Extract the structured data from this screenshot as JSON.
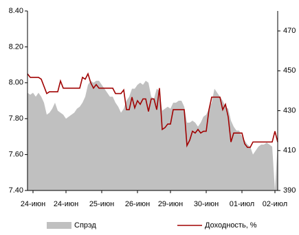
{
  "chart_data": {
    "type": "line",
    "x": [
      0,
      1,
      2,
      3,
      4,
      5,
      6,
      7,
      8,
      9,
      10,
      11,
      12,
      13,
      14,
      15,
      16,
      17,
      18,
      19,
      20,
      21,
      22,
      23,
      24,
      25,
      26,
      27,
      28,
      29,
      30,
      31,
      32,
      33,
      34,
      35,
      36,
      37,
      38,
      39,
      40,
      41,
      42,
      43,
      44,
      45,
      46,
      47,
      48,
      49,
      50,
      51,
      52,
      53,
      54,
      55,
      56,
      57,
      58,
      59,
      60,
      61,
      62,
      63,
      64,
      65,
      66,
      67,
      68,
      69,
      70,
      71,
      72,
      73,
      74,
      75,
      76,
      77,
      78,
      79,
      80,
      81,
      82,
      83,
      84,
      85,
      86,
      87,
      88,
      89,
      90,
      91
    ],
    "xlim": [
      0,
      91
    ],
    "xticks": [
      {
        "value": 2,
        "label": "24-июн"
      },
      {
        "value": 14,
        "label": "24-июн"
      },
      {
        "value": 27,
        "label": "25-июн"
      },
      {
        "value": 40,
        "label": "26-июн"
      },
      {
        "value": 52,
        "label": "29-июн"
      },
      {
        "value": 65,
        "label": "30-июн"
      },
      {
        "value": 78,
        "label": "01-июл"
      },
      {
        "value": 90,
        "label": "02-июл"
      }
    ],
    "ylim": [
      7.4,
      8.4
    ],
    "yticks": [
      {
        "value": 7.4,
        "label": "7.40"
      },
      {
        "value": 7.6,
        "label": "7.60"
      },
      {
        "value": 7.8,
        "label": "7.80"
      },
      {
        "value": 8.0,
        "label": "8.00"
      },
      {
        "value": 8.2,
        "label": "8.20"
      },
      {
        "value": 8.4,
        "label": "8.40"
      }
    ],
    "y2lim": [
      390,
      480
    ],
    "y2ticks": [
      390,
      410,
      430,
      450,
      470
    ],
    "series": [
      {
        "name": "Спрэд",
        "kind": "area",
        "axis": "y2",
        "color": "#c0c0c0",
        "values": [
          439,
          438,
          439,
          437,
          439,
          437,
          434,
          428,
          429,
          431,
          434,
          430,
          429,
          428,
          426,
          427,
          428,
          429,
          431,
          432,
          434,
          437,
          443,
          445,
          444,
          445,
          445,
          443,
          441,
          439,
          437,
          437,
          434,
          432,
          429,
          431,
          435,
          437,
          441,
          441,
          443,
          444,
          443,
          445,
          444,
          437,
          436,
          441,
          440,
          430,
          431,
          432,
          431,
          434,
          434,
          435,
          435,
          432,
          424,
          424,
          425,
          424,
          422,
          424,
          427,
          428,
          431,
          434,
          441,
          439,
          437,
          435,
          432,
          431,
          425,
          422,
          420,
          420,
          417,
          415,
          413,
          412,
          408,
          410,
          412,
          413,
          413,
          414,
          413,
          412,
          390,
          413
        ]
      },
      {
        "name": "Доходность, %",
        "kind": "line",
        "color": "#a00000",
        "values": [
          8.05,
          8.03,
          8.03,
          8.03,
          8.03,
          8.02,
          7.98,
          7.94,
          7.95,
          7.95,
          7.95,
          7.95,
          8.01,
          7.97,
          7.97,
          7.97,
          7.97,
          7.97,
          7.97,
          7.97,
          8.03,
          8.02,
          8.05,
          8.0,
          7.97,
          7.99,
          7.97,
          7.97,
          7.97,
          7.97,
          7.97,
          7.97,
          7.94,
          7.94,
          7.94,
          7.96,
          7.85,
          7.85,
          7.92,
          7.86,
          7.9,
          7.88,
          7.91,
          7.91,
          7.84,
          7.91,
          7.91,
          7.85,
          7.97,
          7.74,
          7.75,
          7.77,
          7.77,
          7.85,
          7.85,
          7.85,
          7.85,
          7.85,
          7.65,
          7.68,
          7.73,
          7.72,
          7.74,
          7.72,
          7.73,
          7.73,
          7.85,
          7.92,
          7.92,
          7.92,
          7.92,
          7.85,
          7.88,
          7.81,
          7.67,
          7.72,
          7.72,
          7.72,
          7.72,
          7.66,
          7.64,
          7.64,
          7.67,
          7.67,
          7.67,
          7.67,
          7.67,
          7.67,
          7.67,
          7.67,
          7.73,
          7.67
        ]
      }
    ]
  }
}
